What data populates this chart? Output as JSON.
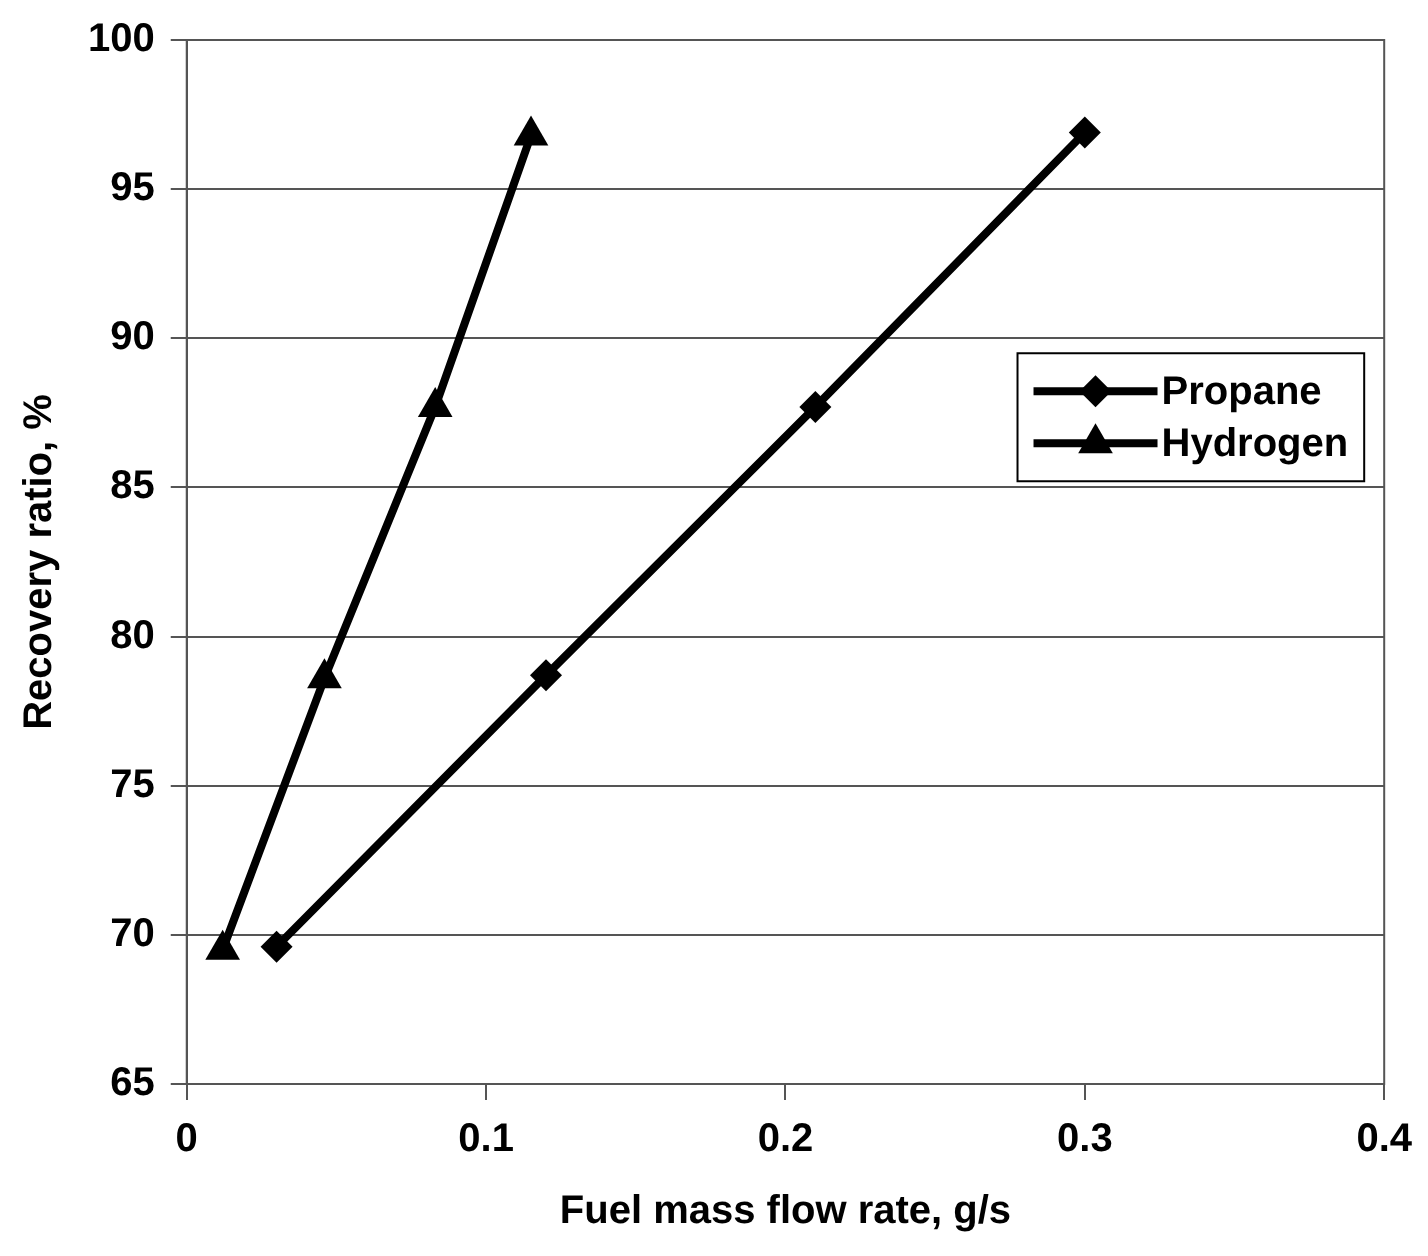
{
  "chart_data": {
    "type": "line",
    "xlabel": "Fuel mass flow rate, g/s",
    "ylabel": "Recovery ratio, %",
    "xlim": [
      0,
      0.4
    ],
    "xticks": [
      0,
      0.1,
      0.2,
      0.3,
      0.4
    ],
    "ylim": [
      65,
      100
    ],
    "yticks": [
      65,
      70,
      75,
      80,
      85,
      90,
      95,
      100
    ],
    "grid": "y",
    "legend": "right",
    "line_style": "solid",
    "series": [
      {
        "name": "Propane",
        "color": "#000000",
        "marker": "diamond",
        "x": [
          0.03,
          0.12,
          0.21,
          0.3
        ],
        "values": [
          69.6,
          78.7,
          87.7,
          96.9
        ]
      },
      {
        "name": "Hydrogen",
        "color": "#000000",
        "marker": "triangle",
        "x": [
          0.012,
          0.046,
          0.083,
          0.115
        ],
        "values": [
          69.5,
          78.6,
          87.7,
          96.8
        ]
      }
    ]
  }
}
